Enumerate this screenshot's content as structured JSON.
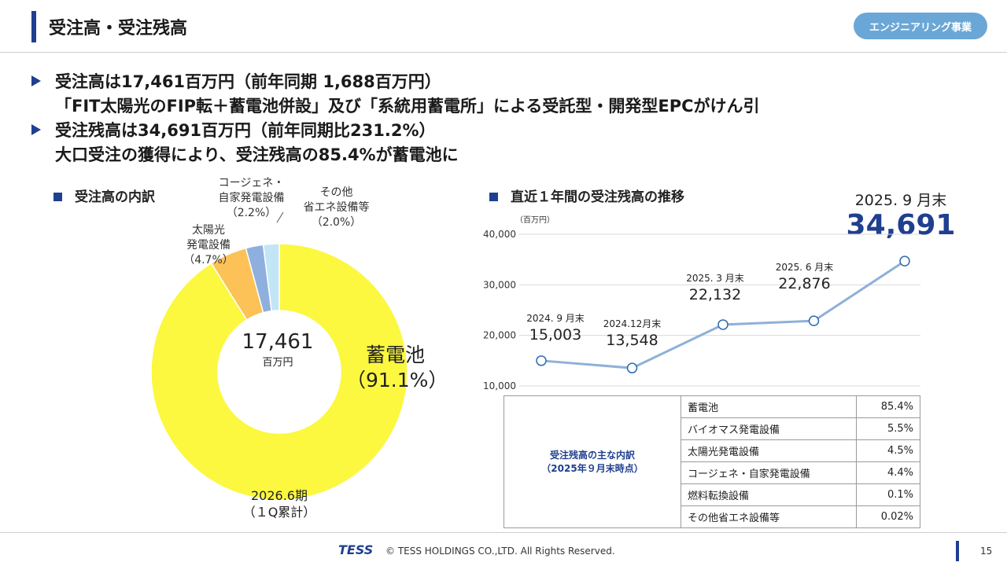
{
  "header": {
    "title": "受注高・受注残高",
    "badge": "エンジニアリング事業"
  },
  "bullets": [
    {
      "line1": "受注高は17,461百万円（前年同期 1,688百万円）",
      "line2": "「FIT太陽光のFIP転＋蓄電池併設」及び「系統用蓄電所」による受託型・開発型EPCがけん引"
    },
    {
      "line1": "受注残高は34,691百万円（前年同期比231.2%）",
      "line2": "大口受注の獲得により、受注残高の85.4%が蓄電池に"
    }
  ],
  "pie_section": {
    "heading": "受注高の内訳",
    "center_value": "17,461",
    "center_unit": "百万円",
    "period_line1": "2026.6期",
    "period_line2": "（１Q累計）",
    "labels": {
      "battery_name": "蓄電池",
      "battery_pct": "（91.1%）",
      "solar_l1": "太陽光",
      "solar_l2": "発電設備",
      "solar_pct": "（4.7%）",
      "cogen_l1": "コージェネ・",
      "cogen_l2": "自家発電設備",
      "cogen_pct": "（2.2%）",
      "other_l1": "その他",
      "other_l2": "省エネ設備等",
      "other_pct": "（2.0%）"
    }
  },
  "line_section": {
    "heading": "直近１年間の受注残高の推移",
    "unit": "（百万円）",
    "latest_label": "2025. 9 月末",
    "latest_value": "34,691"
  },
  "table": {
    "caption_l1": "受注残高の主な内訳",
    "caption_l2": "（2025年９月末時点）",
    "rows": [
      {
        "name": "蓄電池",
        "pct": "85.4%"
      },
      {
        "name": "バイオマス発電設備",
        "pct": "5.5%"
      },
      {
        "name": "太陽光発電設備",
        "pct": "4.5%"
      },
      {
        "name": "コージェネ・自家発電設備",
        "pct": "4.4%"
      },
      {
        "name": "燃料転換設備",
        "pct": "0.1%"
      },
      {
        "name": "その他省エネ設備等",
        "pct": "0.02%"
      }
    ]
  },
  "footer": {
    "logo": "TESS",
    "copyright": "© TESS HOLDINGS CO.,LTD. All Rights Reserved.",
    "page": "15"
  },
  "colors": {
    "navy": "#1f3f8f",
    "battery": "#fbf83f",
    "solar": "#fcc257",
    "cogen": "#8fb0de",
    "other": "#c3e6f7",
    "line": "#8fb0d8"
  },
  "chart_data": [
    {
      "type": "pie",
      "title": "受注高の内訳",
      "categories": [
        "蓄電池",
        "太陽光発電設備",
        "コージェネ・自家発電設備",
        "その他省エネ設備等"
      ],
      "values": [
        91.1,
        4.7,
        2.2,
        2.0
      ],
      "unit": "%"
    },
    {
      "type": "line",
      "title": "直近１年間の受注残高の推移",
      "ylabel": "（百万円）",
      "categories": [
        "2024. 9 月末",
        "2024.12月末",
        "2025. 3 月末",
        "2025. 6 月末",
        "2025. 9 月末"
      ],
      "values": [
        15003,
        13548,
        22132,
        22876,
        34691
      ],
      "value_labels": [
        "15,003",
        "13,548",
        "22,132",
        "22,876",
        "34,691"
      ],
      "yticks": [
        "10,000",
        "20,000",
        "30,000",
        "40,000"
      ],
      "ylim": [
        10000,
        40000
      ]
    }
  ]
}
